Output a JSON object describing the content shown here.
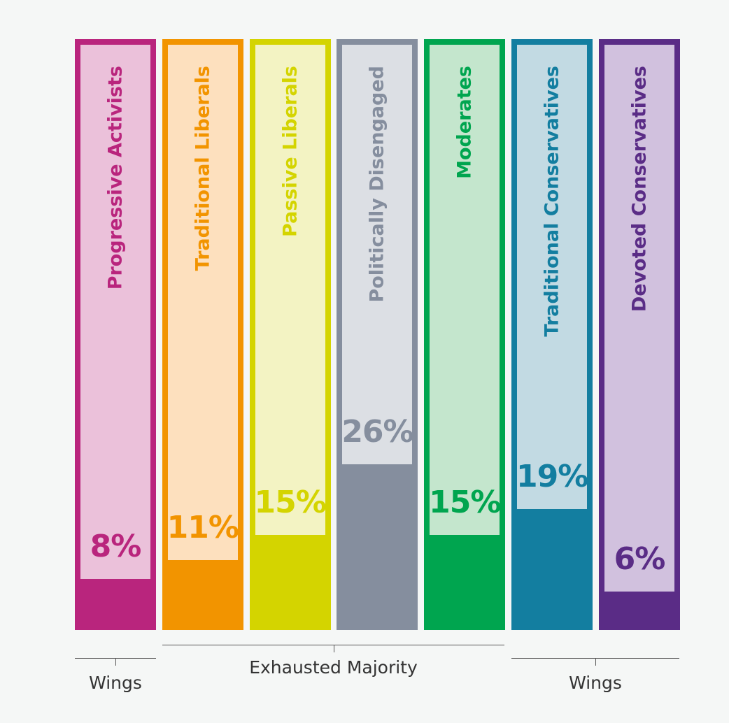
{
  "chart_data": {
    "type": "bar",
    "categories": [
      "Progressive Activists",
      "Traditional Liberals",
      "Passive Liberals",
      "Politically Disengaged",
      "Moderates",
      "Traditional Conservatives",
      "Devoted Conservatives"
    ],
    "values": [
      8,
      11,
      15,
      26,
      15,
      19,
      6
    ],
    "value_labels": [
      "8%",
      "11%",
      "15%",
      "26%",
      "15%",
      "19%",
      "6%"
    ],
    "colors": [
      "#b9257d",
      "#f29400",
      "#d4d400",
      "#858e9e",
      "#00a54f",
      "#137ea0",
      "#5a2c86"
    ],
    "light_colors": [
      "#ebc1da",
      "#fde0be",
      "#f3f3c3",
      "#dcdfe4",
      "#c4e6cd",
      "#c2dae3",
      "#d1c1de"
    ],
    "ylim": [
      0,
      100
    ],
    "groups": [
      {
        "label": "Wings",
        "categories": [
          "Progressive Activists"
        ]
      },
      {
        "label": "Exhausted Majority",
        "categories": [
          "Traditional Liberals",
          "Passive Liberals",
          "Politically Disengaged",
          "Moderates"
        ]
      },
      {
        "label": "Wings",
        "categories": [
          "Traditional Conservatives",
          "Devoted Conservatives"
        ]
      }
    ]
  }
}
